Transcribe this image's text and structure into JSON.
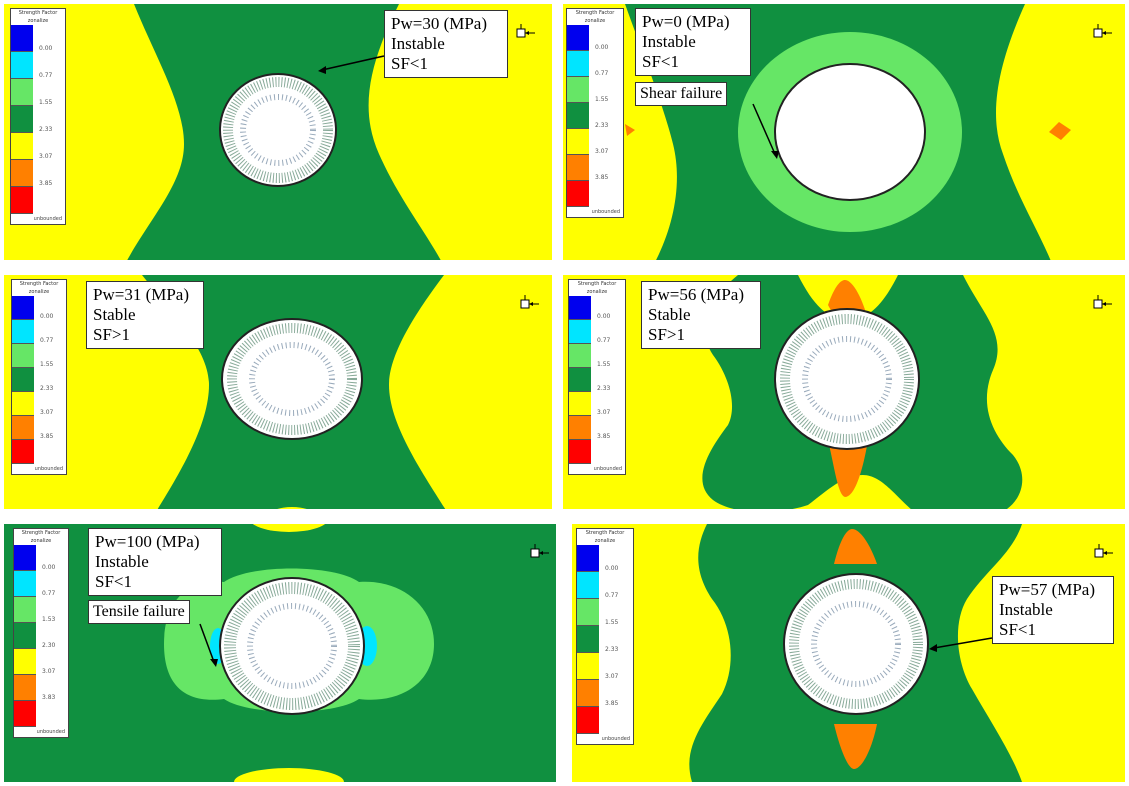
{
  "legend": {
    "title": "Strength Factor",
    "subtitle": "zonalize",
    "unbounded": "unbounded",
    "colors": [
      "#0000ee",
      "#00e5ff",
      "#66e666",
      "#109040",
      "#ffff00",
      "#ff8000",
      "#ff0000"
    ]
  },
  "panels": [
    {
      "id": "pw30",
      "pressure": "Pw=30 (MPa)",
      "state": "Instable",
      "sf": "SF<1",
      "legend_values": [
        "0.00",
        "0.77",
        "1.55",
        "2.33",
        "3.07",
        "3.85"
      ],
      "annotation": ""
    },
    {
      "id": "pw0",
      "pressure": "Pw=0 (MPa)",
      "state": "Instable",
      "sf": "SF<1",
      "legend_values": [
        "0.00",
        "0.77",
        "1.55",
        "2.33",
        "3.07",
        "3.85"
      ],
      "annotation": "Shear failure"
    },
    {
      "id": "pw31",
      "pressure": "Pw=31 (MPa)",
      "state": "Stable",
      "sf": "SF>1",
      "legend_values": [
        "0.00",
        "0.77",
        "1.55",
        "2.33",
        "3.07",
        "3.85"
      ],
      "annotation": ""
    },
    {
      "id": "pw56",
      "pressure": "Pw=56 (MPa)",
      "state": "Stable",
      "sf": "SF>1",
      "legend_values": [
        "0.00",
        "0.77",
        "1.55",
        "2.33",
        "3.07",
        "3.85"
      ],
      "annotation": ""
    },
    {
      "id": "pw100",
      "pressure": "Pw=100 (MPa)",
      "state": "Instable",
      "sf": "SF<1",
      "legend_values": [
        "0.00",
        "0.77",
        "1.53",
        "2.30",
        "3.07",
        "3.83"
      ],
      "annotation": "Tensile failure"
    },
    {
      "id": "pw57",
      "pressure": "Pw=57 (MPa)",
      "state": "Instable",
      "sf": "SF<1",
      "legend_values": [
        "0.00",
        "0.77",
        "1.55",
        "2.33",
        "3.07",
        "3.85"
      ],
      "annotation": ""
    }
  ]
}
